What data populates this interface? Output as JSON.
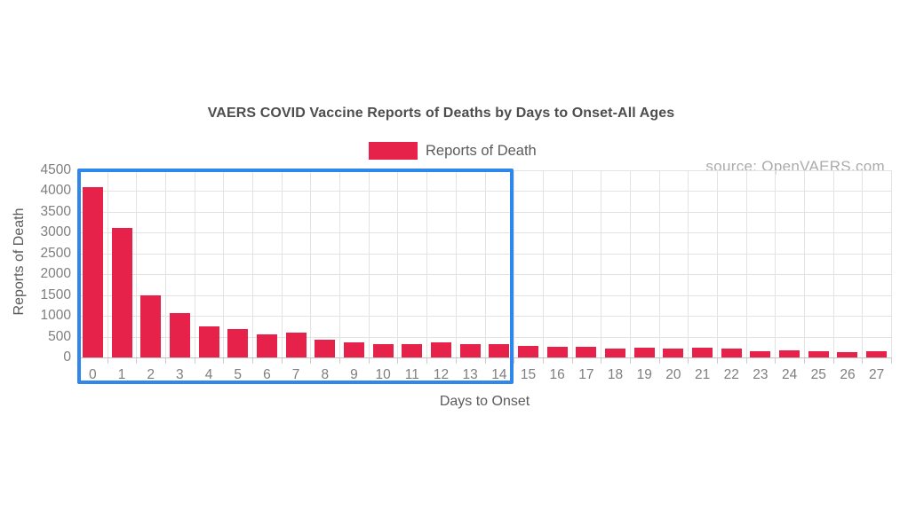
{
  "colors": {
    "bar": "#e6224a",
    "highlight_border": "#2f86eb",
    "grid": "#e3e3e3",
    "baseline_axis": "#c4c4c4",
    "tick": "#cccccc",
    "tick_label_text": "#7d7e80",
    "title_text": "#4d4d4f",
    "axis_title_text": "#5a5b5d",
    "legend_text": "#5a5b5d",
    "source_text": "#a9abad",
    "background": "#ffffff"
  },
  "chart_data": {
    "type": "bar",
    "title": "VAERS COVID Vaccine Reports of Deaths by Days to Onset-All Ages",
    "source_note": "source: OpenVAERS.com",
    "xlabel": "Days to Onset",
    "ylabel": "Reports of Death",
    "legend": [
      {
        "label": "Reports of Death",
        "color": "#e6224a"
      }
    ],
    "legend_position": "top-center",
    "grid": true,
    "ylim": [
      0,
      4500
    ],
    "y_ticks": [
      0,
      500,
      1000,
      1500,
      2000,
      2500,
      3000,
      3500,
      4000,
      4500
    ],
    "categories": [
      "0",
      "1",
      "2",
      "3",
      "4",
      "5",
      "6",
      "7",
      "8",
      "9",
      "10",
      "11",
      "12",
      "13",
      "14",
      "15",
      "16",
      "17",
      "18",
      "19",
      "20",
      "21",
      "22",
      "23",
      "24",
      "25",
      "26",
      "27"
    ],
    "values": [
      4100,
      3120,
      1500,
      1070,
      740,
      680,
      545,
      600,
      420,
      370,
      330,
      320,
      360,
      310,
      320,
      285,
      250,
      260,
      220,
      230,
      205,
      240,
      205,
      150,
      180,
      150,
      135,
      160
    ],
    "annotations": [
      {
        "kind": "highlight-box",
        "from_category": "0",
        "to_category": "14",
        "border_color": "#2f86eb",
        "includes_axis_labels": true
      }
    ]
  }
}
